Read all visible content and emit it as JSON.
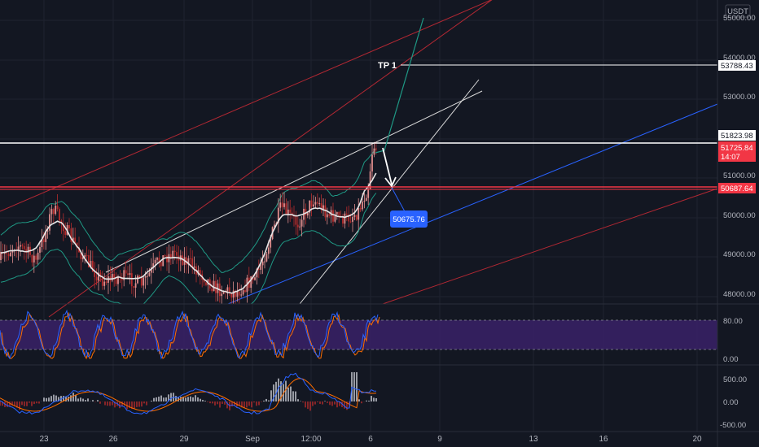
{
  "chart_data": {
    "type": "candlestick",
    "currency": "USDT",
    "main_panel": {
      "ylim": [
        47800,
        55400
      ],
      "price_ticks": [
        "55000.00",
        "54000.00",
        "53000.00",
        "51000.00",
        "50000.00",
        "49000.00",
        "48000.00"
      ],
      "price_tags": [
        {
          "id": "tp1-price",
          "text": "53788.43",
          "value": 53788.43,
          "bg": "#ffffff",
          "fg": "#131722"
        },
        {
          "id": "resistance-price",
          "text": "51823.98",
          "value": 51823.98,
          "bg": "#ffffff",
          "fg": "#131722"
        },
        {
          "id": "last-price",
          "text": "51725.84",
          "value": 51725.84,
          "bg": "#f23645",
          "fg": "#ffffff",
          "subtext": "14:07"
        },
        {
          "id": "support-price",
          "text": "50687.64",
          "value": 50687.64,
          "bg": "#f23645",
          "fg": "#ffffff"
        }
      ],
      "annotations": {
        "tp_label": "TP 1",
        "target_callout": "50675.76"
      }
    },
    "oscillator_1": {
      "ylim": [
        -5,
        105
      ],
      "ticks": [
        "80.00",
        "0.00"
      ],
      "band": [
        20,
        80
      ]
    },
    "oscillator_2": {
      "ylim": [
        -650,
        650
      ],
      "ticks": [
        "500.00",
        "0.00",
        "-500.00"
      ]
    },
    "time_axis": [
      "23",
      "26",
      "29",
      "Sep",
      "12:00",
      "6",
      "9",
      "13",
      "16",
      "20"
    ],
    "colors": {
      "background": "#131722",
      "up": "#e08d8d",
      "down": "#b82c2c",
      "bollinger": "#1f9985",
      "basis": "#e6e6e6",
      "channel_red": "#b22833",
      "channel_blue": "#2962ff",
      "oscillator_band": "#3a2167",
      "stoch_k": "#2962ff",
      "stoch_d": "#ff6d00"
    }
  }
}
